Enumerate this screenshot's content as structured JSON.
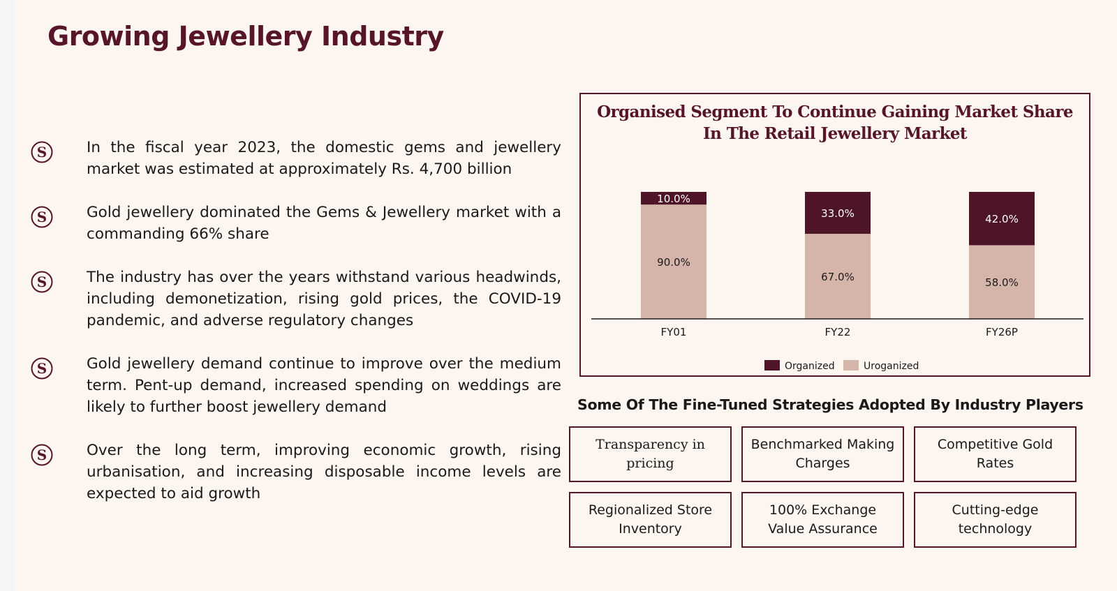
{
  "slide": {
    "title": "Growing Jewellery Industry"
  },
  "bullet_icon": "s-monogram-icon",
  "bullets": [
    "In the fiscal year 2023, the domestic gems and jewellery market was estimated at approximately Rs. 4,700 billion",
    "Gold jewellery dominated the Gems & Jewellery market with a commanding 66% share",
    "The industry has over the years withstand various headwinds, including demonetization, rising gold prices, the COVID-19 pandemic, and adverse regulatory changes",
    "Gold jewellery demand continue to improve over the medium term. Pent-up demand, increased spending on weddings are likely to further boost jewellery demand",
    "Over the long term, improving economic growth, rising urbanisation, and increasing disposable income levels are expected to aid growth"
  ],
  "colors": {
    "brand": "#561529",
    "organized": "#4e1428",
    "unorganized": "#d5b4aa",
    "background": "#fcf5f0"
  },
  "chart_data": {
    "type": "bar",
    "stacked": true,
    "title": "Organised Segment To Continue Gaining Market Share In The Retail Jewellery Market",
    "categories": [
      "FY01",
      "FY22",
      "FY26P"
    ],
    "series": [
      {
        "name": "Organized",
        "values": [
          10.0,
          33.0,
          42.0
        ],
        "labels": [
          "10.0%",
          "33.0%",
          "42.0%"
        ],
        "color": "#4e1428"
      },
      {
        "name": "Uroganized",
        "values": [
          90.0,
          67.0,
          58.0
        ],
        "labels": [
          "90.0%",
          "67.0%",
          "58.0%"
        ],
        "color": "#d5b4aa"
      }
    ],
    "ylim": [
      0,
      100
    ],
    "grid": false,
    "legend": "bottom"
  },
  "strategies": {
    "heading": "Some Of The Fine-Tuned Strategies Adopted By Industry Players",
    "items": [
      "Transparency in pricing",
      "Benchmarked Making Charges",
      "Competitive Gold Rates",
      "Regionalized Store Inventory",
      "100% Exchange Value Assurance",
      "Cutting-edge technology"
    ]
  }
}
